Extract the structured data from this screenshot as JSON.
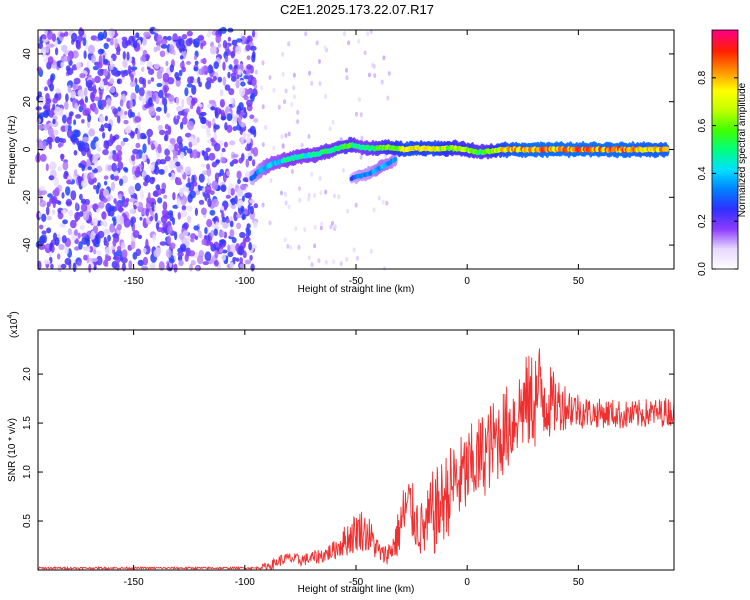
{
  "figure_title": "C2E1.2025.173.22.07.R17",
  "chart_data": [
    {
      "type": "heatmap",
      "panel": "spectrogram",
      "xlabel": "Height of straight line (km)",
      "ylabel": "Frequency (Hz)",
      "xlim": [
        -193,
        93
      ],
      "ylim": [
        -50,
        50
      ],
      "xticks": [
        -150,
        -100,
        -50,
        0,
        50
      ],
      "yticks": [
        -40,
        -20,
        0,
        20,
        40
      ],
      "colorbar": {
        "label": "Normalized spectral amplitude",
        "range": [
          0,
          1
        ],
        "ticks": [
          "0.0",
          "0.2",
          "0.4",
          "0.6",
          "0.8"
        ],
        "colormap": [
          "#ffffff",
          "#e6d8ff",
          "#8c3cff",
          "#3030ff",
          "#0080ff",
          "#00e0ff",
          "#00ff80",
          "#40ff00",
          "#c0ff00",
          "#ffff00",
          "#ff9000",
          "#ff2000",
          "#ff0080"
        ]
      },
      "noise_region": {
        "x_range": [
          -193,
          -95
        ],
        "typical_amplitude": 0.2
      },
      "ridge": {
        "x": [
          -97,
          -92,
          -88,
          -84,
          -80,
          -76,
          -72,
          -68,
          -64,
          -60,
          -56,
          -52,
          -48,
          -44,
          -40,
          -36,
          -32,
          -28,
          -24,
          -20,
          -16,
          -12,
          -8,
          -4,
          0,
          4,
          8,
          12,
          16,
          20,
          30,
          40,
          50,
          60,
          70,
          80,
          90
        ],
        "frequency": [
          -12,
          -8,
          -6,
          -5,
          -4,
          -3,
          -2.5,
          -2,
          -1,
          0,
          1,
          2,
          1,
          0.5,
          0.5,
          1,
          0.5,
          0,
          0.5,
          0.5,
          0.5,
          0.2,
          0.5,
          0.5,
          0,
          -1,
          -1,
          -0.5,
          0,
          0,
          0,
          0,
          0,
          0,
          0,
          0,
          0
        ],
        "amplitude": [
          0.3,
          0.4,
          0.45,
          0.45,
          0.5,
          0.5,
          0.5,
          0.5,
          0.55,
          0.55,
          0.6,
          0.6,
          0.5,
          0.55,
          0.6,
          0.65,
          0.7,
          0.8,
          0.8,
          0.75,
          0.8,
          0.75,
          0.7,
          0.65,
          0.7,
          0.6,
          0.6,
          0.7,
          0.8,
          0.85,
          0.9,
          0.9,
          0.9,
          0.9,
          0.9,
          0.85,
          0.85
        ]
      },
      "secondary_ridge": {
        "x": [
          -52,
          -48,
          -44,
          -40,
          -36,
          -32
        ],
        "frequency": [
          -12,
          -11,
          -10,
          -8,
          -6,
          -4
        ],
        "amplitude": [
          0.3,
          0.35,
          0.35,
          0.4,
          0.4,
          0.35
        ]
      }
    },
    {
      "type": "line",
      "panel": "snr",
      "xlabel": "Height of straight line (km)",
      "ylabel": "SNR (10 * v/v)",
      "multiplier_label": "(x10",
      "multiplier_exponent": "4",
      "xlim": [
        -193,
        93
      ],
      "ylim": [
        0,
        2.45
      ],
      "xticks": [
        -150,
        -100,
        -50,
        0,
        50
      ],
      "yticks": [
        0.5,
        1.0,
        1.5,
        2.0
      ],
      "line_color": "#f03030",
      "series": [
        {
          "x": [
            -193,
            -120,
            -95,
            -88,
            -84,
            -80,
            -75,
            -70,
            -65,
            -60,
            -56,
            -52,
            -48,
            -44,
            -40,
            -38,
            -35,
            -32,
            -30,
            -28,
            -26,
            -24,
            -22,
            -20,
            -18,
            -16,
            -14,
            -12,
            -10,
            -8,
            -6,
            -4,
            -2,
            0,
            2,
            4,
            6,
            8,
            10,
            12,
            14,
            16,
            18,
            20,
            22,
            24,
            26,
            28,
            30,
            32,
            34,
            36,
            38,
            40,
            44,
            48,
            52,
            56,
            60,
            65,
            70,
            75,
            80,
            85,
            90,
            93
          ],
          "mean": [
            0.02,
            0.02,
            0.02,
            0.05,
            0.1,
            0.12,
            0.1,
            0.12,
            0.15,
            0.2,
            0.28,
            0.35,
            0.42,
            0.35,
            0.2,
            0.15,
            0.18,
            0.3,
            0.45,
            0.6,
            0.65,
            0.55,
            0.45,
            0.4,
            0.45,
            0.55,
            0.6,
            0.65,
            0.75,
            0.8,
            0.9,
            0.9,
            0.95,
            1.0,
            1.05,
            1.1,
            1.15,
            1.2,
            1.25,
            1.3,
            1.35,
            1.4,
            1.45,
            1.5,
            1.6,
            1.65,
            1.7,
            1.7,
            1.75,
            1.8,
            1.8,
            1.75,
            1.7,
            1.7,
            1.68,
            1.65,
            1.62,
            1.6,
            1.6,
            1.6,
            1.58,
            1.58,
            1.6,
            1.6,
            1.62,
            1.62
          ],
          "spread": [
            0.01,
            0.01,
            0.01,
            0.05,
            0.06,
            0.06,
            0.06,
            0.07,
            0.08,
            0.1,
            0.15,
            0.2,
            0.22,
            0.2,
            0.12,
            0.1,
            0.12,
            0.2,
            0.3,
            0.35,
            0.35,
            0.3,
            0.3,
            0.3,
            0.35,
            0.45,
            0.45,
            0.45,
            0.45,
            0.45,
            0.45,
            0.45,
            0.45,
            0.45,
            0.45,
            0.45,
            0.45,
            0.45,
            0.45,
            0.45,
            0.45,
            0.45,
            0.45,
            0.45,
            0.45,
            0.45,
            0.5,
            0.5,
            0.55,
            0.55,
            0.55,
            0.45,
            0.35,
            0.3,
            0.25,
            0.2,
            0.18,
            0.15,
            0.15,
            0.15,
            0.15,
            0.15,
            0.15,
            0.15,
            0.15,
            0.15
          ]
        }
      ]
    }
  ]
}
